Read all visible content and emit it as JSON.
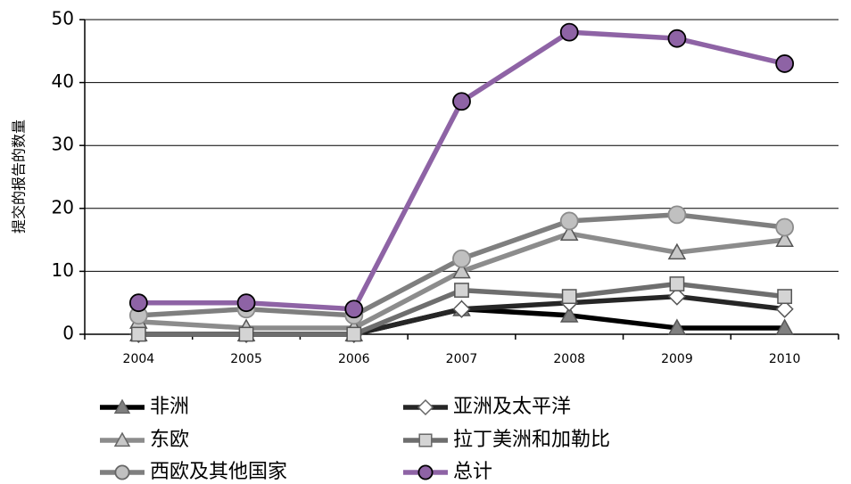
{
  "chart_data": {
    "type": "line",
    "title": "",
    "xlabel": "",
    "ylabel": "提交的报告的数量",
    "ylim": [
      0,
      50
    ],
    "yticks": [
      0,
      10,
      20,
      30,
      40,
      50
    ],
    "grid": "horizontal",
    "legend": "bottom",
    "categories": [
      "2004",
      "2005",
      "2006",
      "2007",
      "2008",
      "2009",
      "2010"
    ],
    "series": [
      {
        "name": "非洲",
        "values": [
          0,
          0,
          0,
          4,
          3,
          1,
          1
        ],
        "color": "#000000",
        "marker": "triangle",
        "marker_fill": "#808080"
      },
      {
        "name": "亚洲及太平洋",
        "values": [
          0,
          0,
          0,
          4,
          5,
          6,
          4
        ],
        "color": "#262626",
        "marker": "diamond",
        "marker_fill": "#ffffff"
      },
      {
        "name": "东欧",
        "values": [
          2,
          1,
          1,
          10,
          16,
          13,
          15
        ],
        "color": "#8c8c8c",
        "marker": "triangle",
        "marker_fill": "#c8c8c8"
      },
      {
        "name": "拉丁美洲和加勒比",
        "values": [
          0,
          0,
          0,
          7,
          6,
          8,
          6
        ],
        "color": "#6e6e6e",
        "marker": "square",
        "marker_fill": "#d4d4d4"
      },
      {
        "name": "西欧及其他国家",
        "values": [
          3,
          4,
          3,
          12,
          18,
          19,
          17
        ],
        "color": "#7f7f7f",
        "marker": "circle",
        "marker_fill": "#c0c0c0"
      },
      {
        "name": "总计",
        "values": [
          5,
          5,
          4,
          37,
          48,
          47,
          43
        ],
        "color": "#8e63a5",
        "marker": "circle",
        "marker_fill": "#8e63a5"
      }
    ]
  }
}
